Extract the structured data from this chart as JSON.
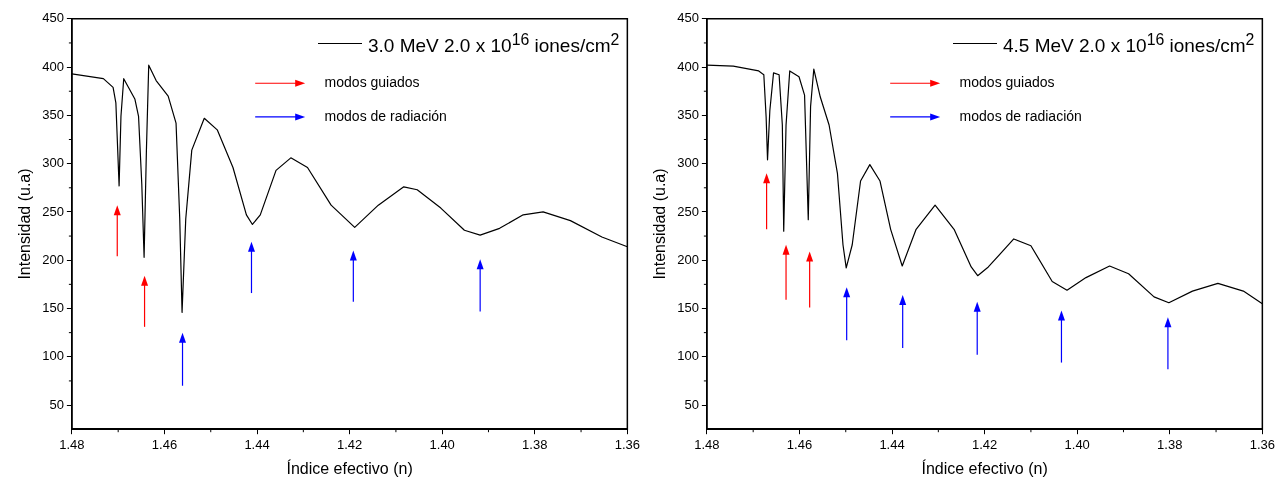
{
  "chart_data": [
    {
      "type": "line",
      "xlabel": "Índice efectivo (n)",
      "ylabel": "Intensidad (u.a)",
      "xlim": [
        1.48,
        1.36
      ],
      "xticks": [
        1.48,
        1.46,
        1.44,
        1.42,
        {
          "value": 1.4,
          "label": "1.40"
        },
        1.38,
        1.36
      ],
      "ylim": [
        25,
        450
      ],
      "yticks": [
        50,
        100,
        150,
        200,
        250,
        300,
        350,
        400,
        450
      ],
      "grid": false,
      "legend": "top right",
      "marker": "none",
      "line_style": "solid",
      "annotations": [
        "modos guiados",
        "modos de radiación"
      ],
      "series": [
        {
          "name": "3.0 MeV 2.0 x 10$^{16}$ iones/cm$^{2}$",
          "color": "#000000",
          "x": [
            1.48,
            1.4732,
            1.4711,
            1.4705,
            1.4698,
            1.4694,
            1.4688,
            1.4664,
            1.4656,
            1.4649,
            1.4644,
            1.4639,
            1.4634,
            1.4618,
            1.4592,
            1.4575,
            1.4567,
            1.4562,
            1.4554,
            1.4541,
            1.4514,
            1.4486,
            1.4452,
            1.4423,
            1.441,
            1.4393,
            1.4359,
            1.4327,
            1.4291,
            1.424,
            1.4189,
            1.4138,
            1.4083,
            1.4054,
            1.4003,
            1.3952,
            1.3918,
            1.3876,
            1.3825,
            1.3782,
            1.3723,
            1.3655,
            1.36
          ],
          "values": [
            393,
            388,
            379,
            363,
            277,
            349,
            388,
            367,
            349,
            279,
            203,
            314,
            402,
            386,
            370,
            342,
            243,
            146,
            243,
            314,
            347,
            335,
            296,
            247,
            237,
            247,
            293,
            306,
            296,
            257,
            234,
            257,
            276,
            273,
            254,
            231,
            226,
            233,
            247,
            250,
            241,
            224,
            214
          ]
        }
      ]
    },
    {
      "type": "line",
      "xlabel": "Índice efectivo (n)",
      "ylabel": "Intensidad (u.a)",
      "xlim": [
        1.48,
        1.36
      ],
      "xticks": [
        1.48,
        1.46,
        1.44,
        1.42,
        {
          "value": 1.4,
          "label": "1.40"
        },
        1.38,
        1.36
      ],
      "ylim": [
        25,
        450
      ],
      "yticks": [
        50,
        100,
        150,
        200,
        250,
        300,
        350,
        400,
        450
      ],
      "grid": false,
      "legend": "top right",
      "marker": "none",
      "line_style": "solid",
      "annotations": [
        "modos guiados",
        "modos de radiación"
      ],
      "series": [
        {
          "name": "4.5 MeV 2.0 x 10$^{16}$ iones/cm$^{2}$",
          "color": "#000000",
          "x": [
            1.48,
            1.4743,
            1.4688,
            1.4677,
            1.4672,
            1.4669,
            1.4664,
            1.4656,
            1.4644,
            1.4637,
            1.4634,
            1.4629,
            1.4621,
            1.4601,
            1.4589,
            1.4581,
            1.4576,
            1.4569,
            1.4555,
            1.4536,
            1.4518,
            1.4506,
            1.4499,
            1.4486,
            1.4468,
            1.4448,
            1.4426,
            1.4403,
            1.4378,
            1.4348,
            1.4307,
            1.4266,
            1.4229,
            1.4215,
            1.4192,
            1.4137,
            1.41,
            1.4054,
            1.4022,
            1.3981,
            1.393,
            1.3889,
            1.3834,
            1.3802,
            1.3751,
            1.3696,
            1.3641,
            1.36
          ],
          "values": [
            402,
            401,
            396,
            392,
            348,
            304,
            355,
            394,
            392,
            340,
            230,
            340,
            396,
            390,
            371,
            242,
            359,
            398,
            369,
            340,
            290,
            216,
            192,
            216,
            282,
            299,
            282,
            232,
            194,
            232,
            257,
            232,
            193,
            184,
            193,
            222,
            215,
            178,
            169,
            182,
            194,
            186,
            162,
            156,
            168,
            176,
            168,
            155
          ]
        }
      ]
    }
  ]
}
